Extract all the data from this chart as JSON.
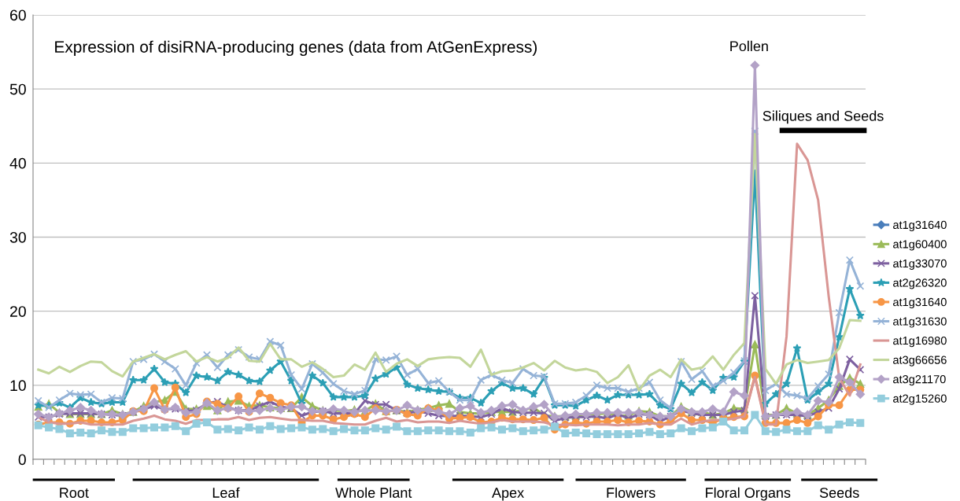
{
  "chart_data": {
    "type": "line",
    "title": "Expression of disiRNA-producing genes (data from AtGenExpress)",
    "categories": [
      null,
      null,
      null,
      null,
      null,
      null,
      null,
      null,
      null,
      null,
      null,
      null,
      null,
      null,
      null,
      null,
      null,
      null,
      null,
      null,
      null,
      null,
      null,
      null,
      null,
      null,
      null,
      null,
      null,
      null,
      null,
      null,
      null,
      null,
      null,
      null,
      null,
      null,
      null,
      null,
      null,
      null,
      null,
      null,
      null,
      null,
      null,
      null,
      null,
      null,
      null,
      null,
      null,
      null,
      null,
      null,
      null,
      null,
      null,
      null,
      null,
      null,
      null,
      null,
      null,
      null,
      null,
      null,
      null,
      null,
      null,
      null,
      null,
      null,
      null,
      null,
      null,
      null,
      null
    ],
    "ylim": [
      0,
      60
    ],
    "yticks": [
      0,
      10,
      20,
      30,
      40,
      50,
      60
    ],
    "grid": "y",
    "legend": "right",
    "annotations": [
      "Pollen",
      "Siliques and Seeds",
      "Root",
      "Leaf",
      "Whole Plant",
      "Apex",
      "Flowers",
      "Floral Organs",
      "Seeds"
    ],
    "series": [
      {
        "name": "at1g31640",
        "color": "#4a7ebb",
        "marker": "diamond",
        "values": [
          null,
          null,
          null,
          null,
          null,
          null,
          null,
          null,
          null,
          null,
          null,
          null,
          null,
          null,
          null,
          null,
          null,
          null,
          null,
          null,
          null,
          null,
          null,
          null,
          null,
          null,
          null,
          null,
          null,
          null,
          null,
          null,
          null,
          null,
          null,
          null,
          null,
          null,
          null,
          null,
          null,
          null,
          null,
          null,
          null,
          null,
          null,
          null,
          null,
          null,
          null,
          null,
          null,
          null,
          null,
          null,
          null,
          null,
          null,
          null,
          null,
          null,
          null,
          null,
          null,
          null,
          null,
          null,
          null,
          null,
          null,
          null,
          null,
          null,
          null,
          null,
          null,
          null,
          null
        ]
      },
      {
        "name": "at1g60400",
        "color": "#9bbb59",
        "marker": "triangle",
        "values": [
          7.1,
          7.5,
          6.3,
          6.1,
          6.1,
          6.1,
          6.1,
          6.6,
          6.1,
          6.4,
          7.2,
          7.7,
          8.0,
          9.1,
          6.8,
          6.8,
          7.2,
          6.6,
          7.8,
          7.9,
          7.2,
          7.3,
          7.0,
          6.9,
          6.9,
          8.4,
          7.2,
          6.6,
          6.6,
          6.5,
          6.7,
          6.5,
          7.5,
          6.5,
          6.6,
          6.4,
          6.7,
          6.9,
          7.3,
          7.5,
          6.4,
          6.2,
          6.2,
          6.4,
          6.4,
          6.4,
          6.6,
          7.0,
          5.9,
          5.8,
          5.8,
          5.9,
          6.1,
          6.1,
          6.2,
          5.9,
          5.9,
          6.5,
          6.4,
          5.8,
          5.8,
          7.1,
          6.4,
          6.4,
          6.0,
          6.2,
          6.9,
          6.8,
          15.5,
          6.0,
          6.0,
          6.9,
          6.2,
          6.0,
          6.9,
          8.0,
          9.9,
          11.0,
          10.2
        ]
      },
      {
        "name": "at1g33070",
        "color": "#7d60a0",
        "marker": "cross",
        "values": [
          5.7,
          5.7,
          6.1,
          6.2,
          6.2,
          6.2,
          6.1,
          6.0,
          5.9,
          6.4,
          6.8,
          7.2,
          6.8,
          6.8,
          6.5,
          6.6,
          7.6,
          7.8,
          7.0,
          6.6,
          6.6,
          7.2,
          7.8,
          7.1,
          6.9,
          5.9,
          6.4,
          6.5,
          6.2,
          6.2,
          6.2,
          7.9,
          7.4,
          7.4,
          6.6,
          6.2,
          6.5,
          6.2,
          5.9,
          5.8,
          5.9,
          5.8,
          5.7,
          6.1,
          6.9,
          6.4,
          6.3,
          6.3,
          6.2,
          5.2,
          5.6,
          5.7,
          5.7,
          5.8,
          5.5,
          6.1,
          5.5,
          6.1,
          6.0,
          5.1,
          5.8,
          6.6,
          6.2,
          6.0,
          6.0,
          6.0,
          6.4,
          6.6,
          22.1,
          5.8,
          6.0,
          6.0,
          6.0,
          5.8,
          6.4,
          6.9,
          9.5,
          13.5,
          12.1
        ]
      },
      {
        "name": "at2g26320",
        "color": "#2c9fb5",
        "marker": "star",
        "values": [
          7.3,
          7.2,
          7.6,
          7.0,
          8.3,
          7.7,
          7.5,
          7.7,
          7.7,
          10.7,
          10.7,
          12.2,
          10.4,
          10.2,
          9.0,
          11.3,
          11.1,
          10.6,
          11.8,
          11.4,
          10.6,
          10.5,
          12.0,
          13.2,
          10.6,
          7.5,
          11.3,
          10.3,
          8.4,
          8.4,
          8.4,
          8.6,
          10.9,
          11.5,
          12.4,
          10.1,
          9.6,
          9.4,
          9.2,
          9.1,
          8.3,
          8.3,
          7.6,
          9.2,
          10.3,
          9.6,
          9.6,
          8.8,
          11.0,
          7.3,
          7.3,
          7.2,
          8.0,
          8.6,
          8.0,
          8.7,
          8.7,
          8.7,
          8.8,
          7.3,
          6.8,
          10.2,
          9.0,
          10.4,
          9.3,
          11.0,
          11.1,
          13.2,
          38.6,
          7.5,
          8.8,
          10.2,
          15.0,
          8.0,
          9.1,
          10.2,
          16.5,
          23.0,
          19.4
        ]
      },
      {
        "name": "at1g31640",
        "color": "#f79646",
        "marker": "circle",
        "values": [
          4.7,
          5.0,
          5.0,
          4.8,
          5.2,
          5.2,
          5.0,
          5.0,
          5.3,
          6.5,
          6.5,
          9.6,
          6.7,
          9.7,
          5.7,
          6.1,
          7.8,
          7.5,
          6.9,
          8.5,
          6.4,
          8.9,
          8.3,
          7.6,
          7.3,
          5.0,
          5.9,
          5.9,
          5.4,
          5.7,
          6.1,
          5.7,
          6.9,
          6.4,
          6.7,
          6.1,
          5.9,
          6.9,
          6.6,
          5.5,
          5.6,
          5.7,
          5.0,
          5.1,
          5.6,
          5.4,
          5.4,
          5.3,
          5.6,
          4.0,
          4.7,
          5.0,
          4.8,
          5.1,
          5.1,
          5.3,
          5.0,
          5.2,
          5.1,
          4.7,
          5.1,
          6.2,
          5.3,
          5.3,
          4.9,
          5.5,
          5.7,
          5.8,
          11.3,
          4.9,
          4.9,
          4.9,
          5.3,
          4.9,
          5.8,
          7.3,
          7.3,
          9.4,
          9.4
        ]
      },
      {
        "name": "at1g31630",
        "color": "#95b3d7",
        "marker": "cross",
        "values": [
          7.9,
          7.0,
          8.0,
          8.9,
          8.7,
          8.8,
          7.7,
          8.3,
          8.2,
          13.2,
          13.5,
          14.2,
          13.2,
          12.2,
          10.0,
          13.0,
          14.1,
          12.4,
          14.1,
          14.8,
          13.8,
          13.5,
          15.9,
          15.4,
          11.4,
          9.5,
          12.9,
          11.7,
          10.2,
          9.2,
          8.8,
          9.3,
          13.5,
          13.4,
          13.9,
          11.4,
          12.2,
          10.3,
          10.6,
          9.1,
          8.0,
          8.0,
          10.7,
          11.4,
          10.7,
          10.3,
          12.2,
          11.3,
          11.2,
          7.5,
          7.5,
          7.7,
          8.6,
          10.0,
          9.6,
          9.6,
          9.1,
          9.6,
          10.4,
          8.0,
          6.9,
          13.2,
          10.8,
          11.9,
          9.9,
          10.6,
          11.7,
          13.3,
          44.3,
          9.3,
          10.2,
          8.8,
          8.6,
          8.2,
          9.9,
          11.5,
          19.8,
          26.9,
          23.4
        ]
      },
      {
        "name": "at1g16980",
        "color": "#d99694",
        "marker": "none",
        "values": [
          5.7,
          5.0,
          4.8,
          4.8,
          5.0,
          4.7,
          4.7,
          4.7,
          4.7,
          5.2,
          5.5,
          5.9,
          5.4,
          5.2,
          4.8,
          5.3,
          5.3,
          5.4,
          5.4,
          5.7,
          5.3,
          5.6,
          5.7,
          5.5,
          5.3,
          5.3,
          5.2,
          5.2,
          4.9,
          4.8,
          4.7,
          4.7,
          5.2,
          5.6,
          5.1,
          5.3,
          5.0,
          5.1,
          5.1,
          4.9,
          5.2,
          5.0,
          4.8,
          5.0,
          5.3,
          5.1,
          5.1,
          5.1,
          5.0,
          4.6,
          4.7,
          4.6,
          4.7,
          4.7,
          4.7,
          4.6,
          4.7,
          4.7,
          4.9,
          4.7,
          4.7,
          5.5,
          4.7,
          5.1,
          5.3,
          5.3,
          5.5,
          5.8,
          11.1,
          4.7,
          4.7,
          16.6,
          42.6,
          40.4,
          35.0,
          22.0,
          11.0,
          8.6,
          12.8
        ]
      },
      {
        "name": "at3g66656",
        "color": "#c3d69b",
        "marker": "none",
        "values": [
          12.1,
          11.6,
          12.5,
          11.8,
          12.6,
          13.2,
          13.1,
          11.9,
          11.2,
          13.2,
          13.7,
          14.2,
          13.5,
          14.1,
          14.6,
          13.2,
          13.8,
          13.2,
          13.7,
          15.1,
          13.3,
          13.2,
          15.6,
          13.5,
          13.5,
          12.5,
          13.1,
          12.2,
          11.1,
          11.3,
          12.8,
          12.1,
          14.4,
          11.8,
          12.9,
          13.5,
          12.6,
          13.5,
          13.7,
          13.8,
          13.7,
          12.5,
          14.8,
          11.4,
          11.9,
          12.0,
          12.4,
          13.0,
          12.0,
          13.3,
          12.4,
          12.0,
          12.2,
          11.8,
          10.3,
          11.1,
          12.7,
          9.3,
          11.3,
          12.1,
          11.1,
          13.5,
          12.1,
          12.4,
          13.9,
          12.1,
          14.1,
          15.7,
          43.9,
          12.2,
          10.2,
          12.8,
          13.4,
          13.0,
          13.2,
          13.4,
          15.0,
          18.8,
          18.7
        ]
      },
      {
        "name": "at3g21170",
        "color": "#b3a2c7",
        "marker": "diamond",
        "values": [
          6.1,
          5.7,
          6.2,
          6.6,
          7.0,
          6.6,
          6.1,
          6.1,
          6.0,
          6.4,
          6.8,
          7.7,
          6.7,
          7.0,
          6.3,
          6.4,
          7.6,
          6.6,
          6.9,
          6.6,
          6.5,
          6.6,
          6.9,
          6.7,
          7.1,
          7.1,
          6.5,
          6.5,
          6.8,
          6.6,
          6.4,
          6.6,
          6.6,
          6.5,
          6.6,
          7.3,
          6.6,
          6.7,
          6.4,
          6.1,
          6.9,
          7.2,
          6.3,
          6.6,
          7.2,
          7.4,
          6.6,
          7.1,
          7.4,
          5.7,
          5.9,
          6.1,
          6.1,
          6.3,
          6.3,
          6.3,
          6.3,
          6.3,
          6.0,
          5.8,
          5.8,
          6.8,
          6.4,
          6.4,
          6.8,
          6.4,
          9.1,
          8.6,
          53.2,
          5.8,
          6.0,
          6.2,
          6.4,
          6.0,
          7.9,
          7.7,
          11.1,
          10.4,
          8.8
        ]
      },
      {
        "name": "at2g15260",
        "color": "#93cddd",
        "marker": "square",
        "values": [
          4.6,
          4.3,
          4.1,
          3.5,
          3.6,
          3.5,
          3.9,
          3.7,
          3.7,
          4.2,
          4.2,
          4.3,
          4.3,
          4.5,
          3.8,
          4.8,
          5.0,
          4.0,
          4.1,
          3.9,
          4.3,
          4.0,
          4.5,
          4.1,
          4.2,
          4.3,
          4.0,
          4.1,
          3.8,
          4.1,
          3.9,
          3.9,
          4.2,
          4.0,
          4.4,
          3.8,
          3.8,
          3.9,
          3.9,
          3.8,
          3.8,
          3.6,
          4.2,
          4.3,
          4.0,
          4.2,
          3.8,
          3.9,
          4.0,
          4.4,
          3.5,
          3.6,
          3.5,
          3.4,
          3.4,
          3.4,
          3.4,
          3.5,
          3.7,
          3.4,
          3.5,
          4.2,
          3.8,
          4.2,
          4.3,
          5.1,
          3.9,
          3.9,
          6.0,
          3.8,
          3.7,
          4.0,
          3.8,
          3.8,
          4.6,
          4.0,
          4.7,
          5.0,
          4.9
        ]
      }
    ]
  }
}
